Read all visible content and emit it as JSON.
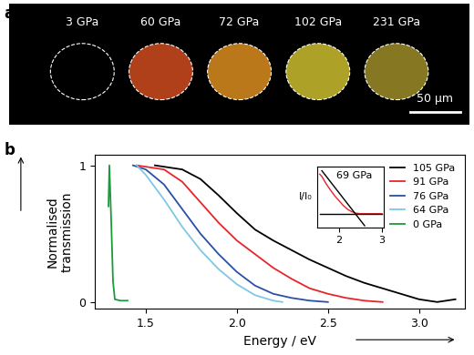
{
  "panel_a": {
    "label": "a",
    "scale_bar": "50 µm",
    "images": [
      {
        "label": "3 GPa",
        "color": "#000000"
      },
      {
        "label": "60 GPa",
        "color": "#c4481c"
      },
      {
        "label": "72 GPa",
        "color": "#d0861e"
      },
      {
        "label": "102 GPa",
        "color": "#c2b42c"
      },
      {
        "label": "231 GPa",
        "color": "#968628"
      }
    ]
  },
  "chart_data": [
    {
      "type": "line",
      "label": "b",
      "x_label": "Energy / eV",
      "y_label": "Normalised\ntransmission",
      "xlim": [
        1.22,
        3.25
      ],
      "ylim": [
        -0.05,
        1.08
      ],
      "xticks": [
        1.5,
        2.0,
        2.5,
        3.0
      ],
      "yticks": [
        0,
        1
      ],
      "legend": "upper right",
      "series": [
        {
          "name": "105 GPa",
          "color": "#000000",
          "x": [
            1.55,
            1.7,
            1.8,
            1.9,
            2.0,
            2.1,
            2.2,
            2.3,
            2.4,
            2.5,
            2.6,
            2.7,
            2.8,
            2.9,
            3.0,
            3.1,
            3.2
          ],
          "values": [
            1.0,
            0.97,
            0.9,
            0.78,
            0.65,
            0.53,
            0.45,
            0.38,
            0.31,
            0.25,
            0.19,
            0.14,
            0.1,
            0.06,
            0.02,
            0.0,
            0.02
          ]
        },
        {
          "name": "91 GPa",
          "color": "#e8242a",
          "x": [
            1.45,
            1.6,
            1.7,
            1.8,
            1.9,
            2.0,
            2.1,
            2.2,
            2.3,
            2.4,
            2.5,
            2.6,
            2.7,
            2.8
          ],
          "values": [
            1.0,
            0.97,
            0.88,
            0.73,
            0.58,
            0.45,
            0.35,
            0.25,
            0.17,
            0.1,
            0.06,
            0.03,
            0.01,
            0.0
          ]
        },
        {
          "name": "76 GPa",
          "color": "#2a4fa8",
          "x": [
            1.43,
            1.5,
            1.6,
            1.7,
            1.8,
            1.9,
            2.0,
            2.1,
            2.2,
            2.3,
            2.4,
            2.5
          ],
          "values": [
            1.0,
            0.97,
            0.86,
            0.68,
            0.5,
            0.35,
            0.22,
            0.12,
            0.06,
            0.03,
            0.01,
            0.0
          ]
        },
        {
          "name": "64 GPa",
          "color": "#7ec8e3",
          "x": [
            1.45,
            1.5,
            1.6,
            1.7,
            1.8,
            1.9,
            2.0,
            2.1,
            2.2,
            2.25
          ],
          "values": [
            1.0,
            0.93,
            0.75,
            0.55,
            0.38,
            0.24,
            0.13,
            0.05,
            0.01,
            0.0
          ]
        },
        {
          "name": "0 GPa",
          "color": "#1a9a3a",
          "x": [
            1.295,
            1.3,
            1.31,
            1.32,
            1.33,
            1.36,
            1.4
          ],
          "values": [
            0.7,
            1.0,
            0.6,
            0.15,
            0.02,
            0.01,
            0.01
          ]
        }
      ]
    },
    {
      "type": "line",
      "title": "69 GPa",
      "y_label": "I/I₀",
      "xlim": [
        1.5,
        3.05
      ],
      "ylim": [
        -0.25,
        1.0
      ],
      "xticks": [
        2,
        3
      ],
      "yticks": [],
      "tick_labels": "x",
      "series": [
        {
          "color": "#e8242a",
          "x": [
            1.55,
            1.6,
            1.7,
            1.8,
            1.9,
            2.0,
            2.1,
            2.2,
            2.3,
            2.4,
            2.5,
            2.6,
            3.0
          ],
          "values": [
            0.85,
            0.8,
            0.65,
            0.52,
            0.4,
            0.3,
            0.2,
            0.12,
            0.07,
            0.04,
            0.03,
            0.03,
            0.03
          ]
        },
        {
          "color": "#000000",
          "x": [
            1.6,
            2.6
          ],
          "values": [
            0.92,
            -0.22
          ]
        },
        {
          "color": "#000000",
          "x": [
            1.55,
            3.0
          ],
          "values": [
            0.02,
            0.02
          ]
        }
      ]
    }
  ]
}
